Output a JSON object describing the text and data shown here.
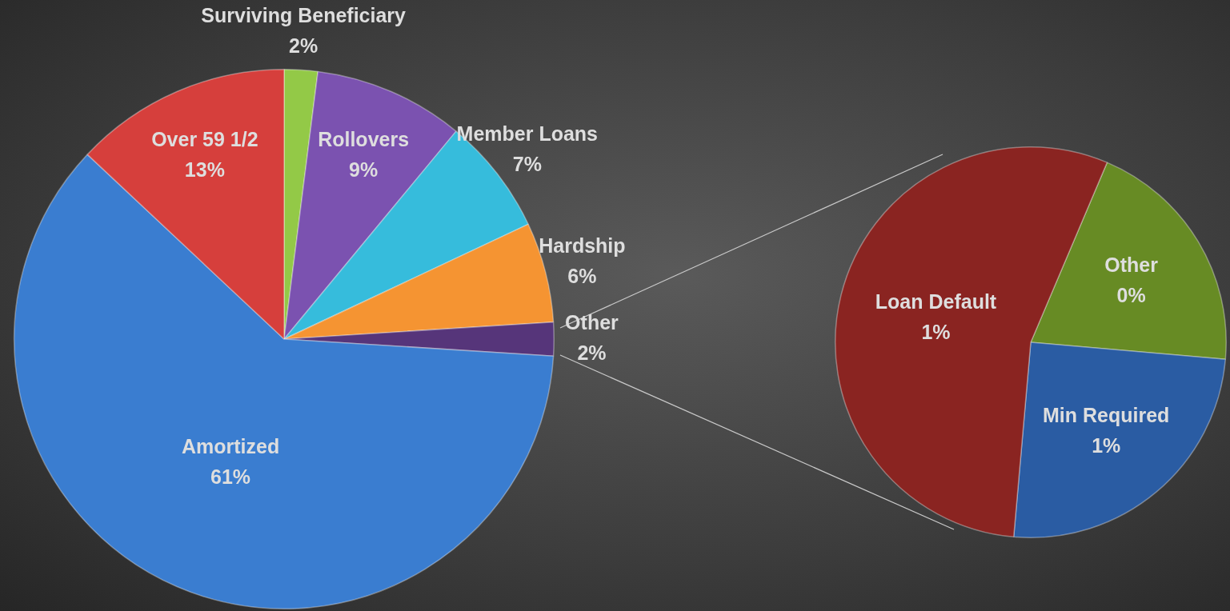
{
  "chart_data": [
    {
      "type": "pie",
      "categories": [
        "Surviving Beneficiary",
        "Rollovers",
        "Member Loans",
        "Hardship",
        "Other",
        "Amortized",
        "Over 59 1/2"
      ],
      "values": [
        2,
        9,
        7,
        6,
        2,
        61,
        13
      ],
      "value_labels": [
        "2%",
        "9%",
        "7%",
        "6%",
        "2%",
        "61%",
        "13%"
      ],
      "colors": [
        "#93c947",
        "#7b52b0",
        "#36bcdc",
        "#f59432",
        "#56357a",
        "#3a7dd0",
        "#d63f3c"
      ],
      "legend": false
    },
    {
      "type": "pie",
      "categories": [
        "Other",
        "Min Required",
        "Loan Default"
      ],
      "values": [
        0.4,
        0.5,
        1.1
      ],
      "value_labels": [
        "0%",
        "1%",
        "1%"
      ],
      "colors": [
        "#678b24",
        "#2a5ca3",
        "#8a2421"
      ],
      "legend": false
    }
  ]
}
